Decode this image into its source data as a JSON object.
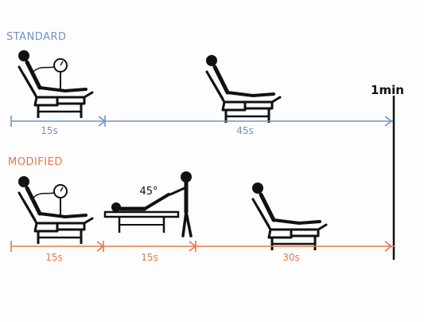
{
  "colors": {
    "standard": "#6f93c4",
    "modified": "#e27a45",
    "ink": "#111111",
    "background": "#fdfdfd"
  },
  "standard": {
    "title": "STANDARD",
    "segments": [
      "15s",
      "45s"
    ]
  },
  "modified": {
    "title": "MODIFIED",
    "segments": [
      "15s",
      "15s",
      "30s"
    ],
    "leg_angle": "45°"
  },
  "end_marker": "1min",
  "icons": [
    "person-on-reclined-chair-with-gauge-icon",
    "person-on-reclined-chair-icon",
    "person-lying-with-leg-raised-icon"
  ]
}
